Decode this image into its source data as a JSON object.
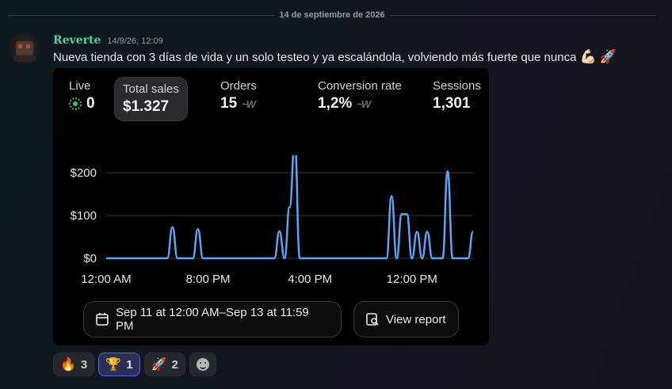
{
  "divider": {
    "date": "14 de septiembre de 2026"
  },
  "message": {
    "username": "Reverte",
    "timestamp": "14/9/26, 12:09",
    "text": "Nueva tienda con 3 días de vida y un solo testeo y ya escalándola, volviendo más fuerte que nunca",
    "emojis": [
      "💪🏻",
      "🚀"
    ]
  },
  "card": {
    "metrics": {
      "live": {
        "label": "Live",
        "value": "0"
      },
      "total_sales": {
        "label": "Total sales",
        "value": "$1.327"
      },
      "orders": {
        "label": "Orders",
        "value": "15"
      },
      "conversion": {
        "label": "Conversion rate",
        "value": "1,2%"
      },
      "sessions": {
        "label": "Sessions",
        "value": "1,301"
      }
    },
    "date_range": "Sep 11 at 12:00 AM–Sep 13 at 11:59 PM",
    "view_report": "View report",
    "line_color": "#5aa5f5"
  },
  "chart_data": {
    "type": "line",
    "title": "",
    "xlabel": "",
    "ylabel": "",
    "ylim": [
      0,
      200
    ],
    "y_ticks": [
      "$0",
      "$100",
      "$200"
    ],
    "x_ticks": [
      "12:00 AM",
      "8:00 PM",
      "4:00 PM",
      "12:00 PM"
    ],
    "x_range_hours": [
      0,
      72
    ],
    "grid": true,
    "legend": "none",
    "series": [
      {
        "values_by_hour": [
          [
            0,
            0
          ],
          [
            12,
            0
          ],
          [
            13,
            73
          ],
          [
            14,
            0
          ],
          [
            17,
            0
          ],
          [
            18,
            68
          ],
          [
            19,
            0
          ],
          [
            33,
            0
          ],
          [
            34,
            63
          ],
          [
            35,
            0
          ],
          [
            36,
            120
          ],
          [
            37,
            270
          ],
          [
            38,
            0
          ],
          [
            55,
            0
          ],
          [
            56,
            145
          ],
          [
            57,
            0
          ],
          [
            58,
            103
          ],
          [
            59,
            103
          ],
          [
            60,
            0
          ],
          [
            61,
            62
          ],
          [
            62,
            0
          ],
          [
            63,
            62
          ],
          [
            64,
            0
          ],
          [
            66,
            0
          ],
          [
            67,
            203
          ],
          [
            68,
            0
          ],
          [
            71,
            0
          ],
          [
            72,
            62
          ]
        ]
      }
    ]
  },
  "reactions": [
    {
      "emoji": "🔥",
      "count": "3",
      "selected": false
    },
    {
      "emoji": "🏆",
      "count": "1",
      "selected": true
    },
    {
      "emoji": "🚀",
      "count": "2",
      "selected": false
    }
  ]
}
